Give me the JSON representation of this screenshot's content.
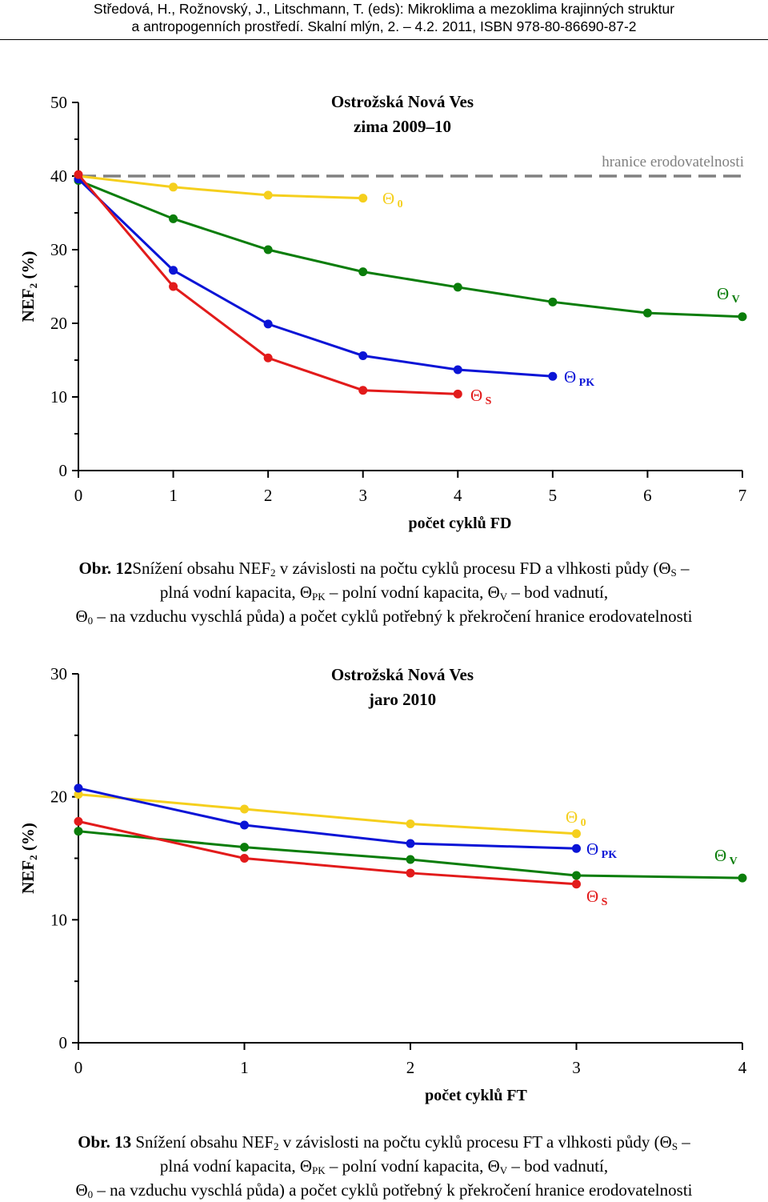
{
  "header": {
    "line1": "Středová, H., Rožnovský, J., Litschmann, T. (eds): Mikroklima a mezoklima krajinných struktur",
    "line2": "a antropogenních prostředí. Skalní mlýn, 2. – 4.2. 2011, ISBN 978-80-86690-87-2"
  },
  "chart_data": [
    {
      "type": "line",
      "title_line1": "Ostrožská Nová Ves",
      "title_line2": "zima 2009–10",
      "xlabel": "počet cyklů FD",
      "ylabel_main": "NEF",
      "ylabel_sub": "2",
      "ylabel_suffix": " (%)",
      "xlim": [
        0,
        7
      ],
      "ylim": [
        0,
        50
      ],
      "x_ticks": [
        "0",
        "1",
        "2",
        "3",
        "4",
        "5",
        "6",
        "7"
      ],
      "y_ticks": [
        "0",
        "10",
        "20",
        "30",
        "40",
        "50"
      ],
      "threshold": {
        "value": 40,
        "label": "hranice erodovatelnosti",
        "color": "#808080"
      },
      "series": [
        {
          "name": "S",
          "symbol": "Θ",
          "sub": "S",
          "color": "#e21b1b",
          "x": [
            0,
            1,
            2,
            3,
            4
          ],
          "values": [
            40.2,
            25.0,
            15.3,
            10.9,
            10.4
          ]
        },
        {
          "name": "PK",
          "symbol": "Θ",
          "sub": "PK",
          "color": "#0a14d6",
          "x": [
            0,
            1,
            2,
            3,
            4,
            5
          ],
          "values": [
            39.6,
            27.2,
            19.9,
            15.6,
            13.7,
            12.8
          ]
        },
        {
          "name": "V",
          "symbol": "Θ",
          "sub": "V",
          "color": "#0a7d0a",
          "x": [
            0,
            1,
            2,
            3,
            4,
            5,
            6,
            7
          ],
          "values": [
            39.4,
            34.2,
            30.0,
            27.0,
            24.9,
            22.9,
            21.4,
            20.9
          ]
        },
        {
          "name": "0",
          "symbol": "Θ",
          "sub": "0",
          "color": "#f5cf1d",
          "x": [
            0,
            1,
            2,
            3
          ],
          "values": [
            40.0,
            38.5,
            37.4,
            37.0
          ]
        }
      ]
    },
    {
      "type": "line",
      "title_line1": "Ostrožská Nová Ves",
      "title_line2": "jaro 2010",
      "xlabel": "počet cyklů FT",
      "ylabel_main": "NEF",
      "ylabel_sub": "2",
      "ylabel_suffix": " (%)",
      "xlim": [
        0,
        4
      ],
      "ylim": [
        0,
        30
      ],
      "x_ticks": [
        "0",
        "1",
        "2",
        "3",
        "4"
      ],
      "y_ticks": [
        "0",
        "10",
        "20",
        "30"
      ],
      "series": [
        {
          "name": "S",
          "symbol": "Θ",
          "sub": "S",
          "color": "#e21b1b",
          "x": [
            0,
            1,
            2,
            3
          ],
          "values": [
            18.0,
            15.0,
            13.8,
            12.9
          ]
        },
        {
          "name": "PK",
          "symbol": "Θ",
          "sub": "PK",
          "color": "#0a14d6",
          "x": [
            0,
            1,
            2,
            3
          ],
          "values": [
            20.7,
            17.7,
            16.2,
            15.8
          ]
        },
        {
          "name": "V",
          "symbol": "Θ",
          "sub": "V",
          "color": "#0a7d0a",
          "x": [
            0,
            1,
            2,
            3,
            4
          ],
          "values": [
            17.2,
            15.9,
            14.9,
            13.6,
            13.4
          ]
        },
        {
          "name": "0",
          "symbol": "Θ",
          "sub": "0",
          "color": "#f5cf1d",
          "x": [
            0,
            1,
            2,
            3
          ],
          "values": [
            20.2,
            19.0,
            17.8,
            17.0
          ]
        }
      ]
    }
  ],
  "caption1": {
    "label": "Obr. 12",
    "line1_a": "Snížení obsahu NEF",
    "line1_sub": "2",
    "line1_b": " v závislosti na počtu cyklů procesu FD a vlhkosti půdy (Θ",
    "s_sub": "S",
    "line1_c": " –",
    "line2_a": "plná vodní kapacita, Θ",
    "pk_sub": "PK",
    "line2_b": " – polní vodní kapacita, Θ",
    "v_sub": "V",
    "line2_c": " – bod vadnutí,",
    "line3_a": "Θ",
    "zero_sub": "0",
    "line3_b": " – na vzduchu vyschlá půda) a počet cyklů potřebný k překročení hranice erodovatelnosti"
  },
  "caption2": {
    "label": "Obr. 13",
    "line1_a": " Snížení obsahu NEF",
    "line1_sub": "2",
    "line1_b": " v závislosti na počtu cyklů procesu FT a vlhkosti půdy (Θ",
    "s_sub": "S",
    "line1_c": " –",
    "line2_a": "plná vodní kapacita, Θ",
    "pk_sub": "PK",
    "line2_b": " – polní vodní kapacita, Θ",
    "v_sub": "V",
    "line2_c": " – bod vadnutí,",
    "line3_a": "Θ",
    "zero_sub": "0",
    "line3_b": " – na vzduchu vyschlá půda) a počet cyklů potřebný k překročení hranice erodovatelnosti"
  }
}
